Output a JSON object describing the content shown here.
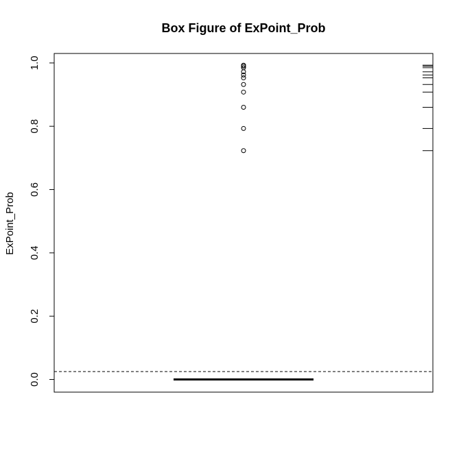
{
  "chart_data": {
    "type": "box",
    "title": "Box Figure of ExPoint_Prob",
    "xlabel": "",
    "ylabel": "ExPoint_Prob",
    "ylim": [
      -0.04,
      1.03
    ],
    "yticks": [
      0.0,
      0.2,
      0.4,
      0.6,
      0.8,
      1.0
    ],
    "ytick_labels": [
      "0.0",
      "0.2",
      "0.4",
      "0.6",
      "0.8",
      "1.0"
    ],
    "box": {
      "min": 0.0,
      "q1": 0.0,
      "median": 0.0,
      "q3": 0.0,
      "max": 0.0
    },
    "outliers": [
      0.723,
      0.793,
      0.86,
      0.908,
      0.932,
      0.953,
      0.962,
      0.972,
      0.985,
      0.99,
      0.993
    ],
    "reference_line": {
      "y": 0.025,
      "style": "dashed"
    },
    "rug_side": "right",
    "rug": [
      0.723,
      0.793,
      0.86,
      0.908,
      0.932,
      0.953,
      0.962,
      0.972,
      0.985,
      0.99,
      0.993
    ],
    "grid": false,
    "colors": {
      "foreground": "#000000",
      "background": "#ffffff"
    }
  }
}
